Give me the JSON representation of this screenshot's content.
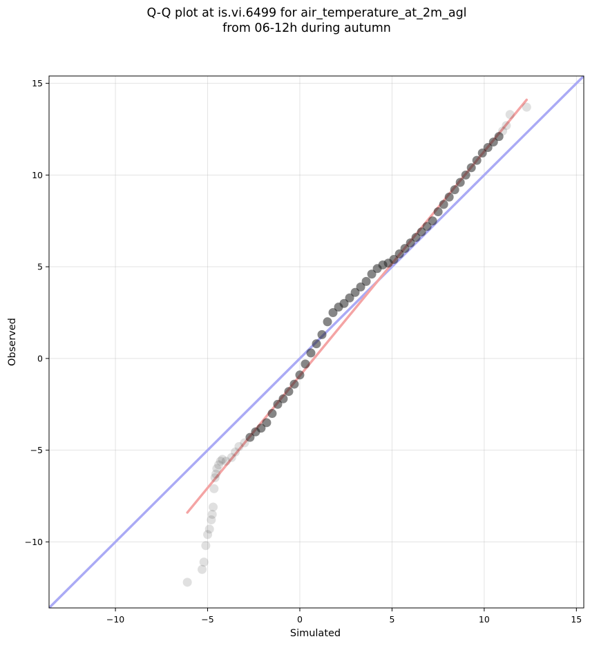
{
  "chart_data": {
    "type": "scatter",
    "title_lines": [
      "Q-Q plot at is.vi.6499 for air_temperature_at_2m_agl",
      "from 06-12h during autumn"
    ],
    "xlabel": "Simulated",
    "ylabel": "Observed",
    "xlim": [
      -13.6,
      15.4
    ],
    "ylim": [
      -13.6,
      15.4
    ],
    "xticks": [
      -10,
      -5,
      0,
      5,
      10,
      15
    ],
    "yticks": [
      -10,
      -5,
      0,
      5,
      10,
      15
    ],
    "xtick_labels": [
      "−10",
      "−5",
      "0",
      "5",
      "10",
      "15"
    ],
    "ytick_labels": [
      "−10",
      "−5",
      "0",
      "5",
      "10",
      "15"
    ],
    "grid": true,
    "reference_line": {
      "x": [
        -13.6,
        15.4
      ],
      "y": [
        -13.6,
        15.4
      ],
      "color": "#aaaaf5"
    },
    "fit_line": {
      "x": [
        -6.1,
        12.3
      ],
      "y": [
        -8.4,
        14.1
      ],
      "color": "#f4a4a4"
    },
    "point_color": "#222222",
    "quantiles": {
      "x": [
        -6.1,
        -5.3,
        -5.2,
        -5.1,
        -5.0,
        -4.9,
        -4.8,
        -4.75,
        -4.7,
        -4.65,
        -4.6,
        -4.55,
        -4.5,
        -4.4,
        -4.3,
        -4.2,
        -4.0,
        -3.7,
        -3.5,
        -3.3,
        -3.0,
        -2.7,
        -2.4,
        -2.1,
        -1.8,
        -1.5,
        -1.2,
        -0.9,
        -0.6,
        -0.3,
        0.0,
        0.3,
        0.6,
        0.9,
        1.2,
        1.5,
        1.8,
        2.1,
        2.4,
        2.7,
        3.0,
        3.3,
        3.6,
        3.9,
        4.2,
        4.5,
        4.8,
        5.1,
        5.4,
        5.7,
        6.0,
        6.3,
        6.6,
        6.9,
        7.2,
        7.5,
        7.8,
        8.1,
        8.4,
        8.7,
        9.0,
        9.3,
        9.6,
        9.9,
        10.2,
        10.5,
        10.8,
        11.0,
        11.2,
        11.4,
        12.3
      ],
      "y": [
        -12.2,
        -11.5,
        -11.1,
        -10.2,
        -9.6,
        -9.3,
        -8.8,
        -8.5,
        -8.1,
        -7.1,
        -6.5,
        -6.3,
        -6.0,
        -5.8,
        -5.6,
        -5.5,
        -5.6,
        -5.4,
        -5.1,
        -4.8,
        -4.6,
        -4.3,
        -4.0,
        -3.8,
        -3.5,
        -3.0,
        -2.5,
        -2.2,
        -1.8,
        -1.4,
        -0.9,
        -0.3,
        0.3,
        0.8,
        1.3,
        2.0,
        2.5,
        2.8,
        3.0,
        3.3,
        3.6,
        3.9,
        4.2,
        4.6,
        4.9,
        5.1,
        5.2,
        5.4,
        5.7,
        6.0,
        6.3,
        6.6,
        6.9,
        7.2,
        7.5,
        8.0,
        8.4,
        8.8,
        9.2,
        9.6,
        10.0,
        10.4,
        10.8,
        11.2,
        11.5,
        11.8,
        12.1,
        12.4,
        12.7,
        13.3,
        13.7
      ]
    }
  }
}
